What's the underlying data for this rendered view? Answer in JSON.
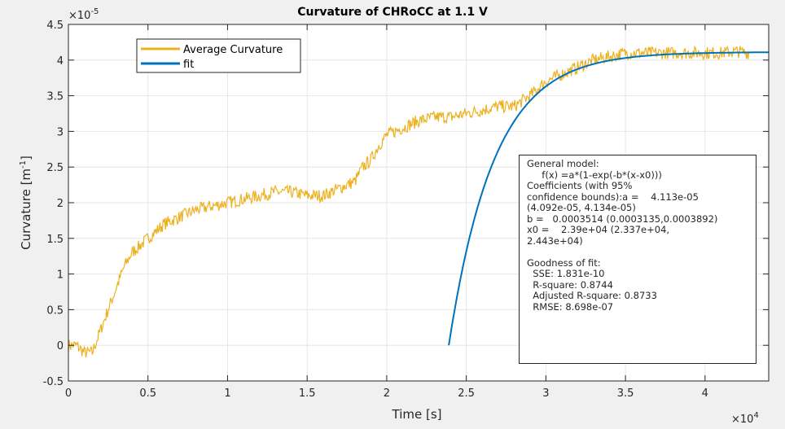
{
  "chart_data": {
    "type": "line",
    "title": "Curvature of CHRoCC at 1.1 V",
    "xlabel": "Time [s]",
    "ylabel_main": "Curvature [m",
    "ylabel_sup": "-1",
    "ylabel_close": "]",
    "x_exponent": "×10",
    "x_exponent_power": "4",
    "y_exponent": "×10",
    "y_exponent_power": "-5",
    "xlim": [
      0,
      4.4
    ],
    "ylim": [
      -0.5,
      4.5
    ],
    "grid": true,
    "xticks": [
      0,
      0.5,
      1,
      1.5,
      2,
      2.5,
      3,
      3.5,
      4
    ],
    "xtick_labels": [
      "0",
      "0.5",
      "1",
      "1.5",
      "2",
      "2.5",
      "3",
      "3.5",
      "4"
    ],
    "yticks": [
      -0.5,
      0,
      0.5,
      1,
      1.5,
      2,
      2.5,
      3,
      3.5,
      4,
      4.5
    ],
    "ytick_labels": [
      "-0.5",
      "0",
      "0.5",
      "1",
      "1.5",
      "2",
      "2.5",
      "3",
      "3.5",
      "4",
      "4.5"
    ],
    "legend": {
      "placement": "top-left",
      "entries": [
        "Average Curvature",
        "fit"
      ]
    },
    "series": [
      {
        "name": "Average Curvature",
        "color": "#EDB120",
        "x": [
          0,
          0.05,
          0.1,
          0.15,
          0.2,
          0.25,
          0.3,
          0.35,
          0.4,
          0.5,
          0.6,
          0.7,
          0.8,
          0.9,
          1.0,
          1.1,
          1.2,
          1.3,
          1.4,
          1.5,
          1.6,
          1.7,
          1.8,
          1.85,
          1.9,
          1.95,
          2.0,
          2.1,
          2.2,
          2.3,
          2.4,
          2.5,
          2.6,
          2.7,
          2.8,
          2.9,
          3.0,
          3.1,
          3.2,
          3.3,
          3.4,
          3.5,
          3.6,
          3.7,
          3.8,
          3.9,
          4.0,
          4.1,
          4.2,
          4.28
        ],
        "y": [
          0,
          0,
          -0.1,
          -0.1,
          0.2,
          0.5,
          0.8,
          1.1,
          1.3,
          1.5,
          1.7,
          1.8,
          1.9,
          1.95,
          2.0,
          2.05,
          2.1,
          2.15,
          2.15,
          2.1,
          2.1,
          2.2,
          2.3,
          2.5,
          2.6,
          2.8,
          2.95,
          3.05,
          3.15,
          3.2,
          3.2,
          3.25,
          3.3,
          3.35,
          3.35,
          3.5,
          3.7,
          3.8,
          3.9,
          4.0,
          4.05,
          4.1,
          4.1,
          4.1,
          4.1,
          4.1,
          4.1,
          4.1,
          4.12,
          4.1
        ]
      },
      {
        "name": "fit",
        "color": "#0072BD",
        "model": "a*(1-exp(-b*(x-x0)))",
        "a": 4.113,
        "b": 3.514,
        "x0": 2.39,
        "x_range": [
          2.39,
          4.4
        ]
      }
    ],
    "annotation": [
      "General model:",
      "     f(x) =a*(1-exp(-b*(x-x0)))",
      "Coefficients (with 95%",
      "confidence bounds):a =    4.113e-05",
      "(4.092e-05, 4.134e-05)",
      "b =   0.0003514 (0.0003135,0.0003892)",
      "x0 =    2.39e+04 (2.337e+04,",
      "2.443e+04)",
      "",
      "Goodness of fit:",
      "  SSE: 1.831e-10",
      "  R-square: 0.8744",
      "  Adjusted R-square: 0.8733",
      "  RMSE: 8.698e-07"
    ]
  }
}
